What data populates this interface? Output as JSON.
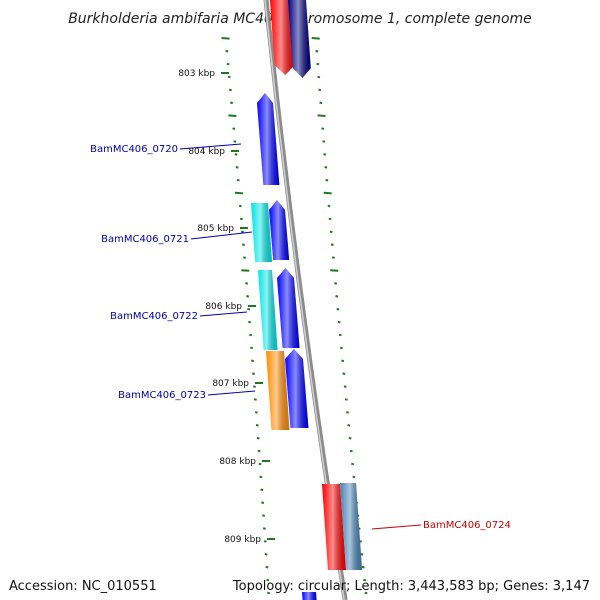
{
  "title": "Burkholderia ambifaria MC40-6 chromosome 1, complete genome",
  "footer": {
    "accession": "Accession: NC_010551",
    "topology": "Topology: circular; Length: 3,443,583 bp; Genes: 3,147"
  },
  "colors": {
    "backbone": "#8c8c8c",
    "tick_dash": "#1f7a1f",
    "label_forward": "#0000b0",
    "label_reverse": "#cc0000"
  },
  "ticks": [
    {
      "label": "803 kbp"
    },
    {
      "label": "804 kbp"
    },
    {
      "label": "805 kbp"
    },
    {
      "label": "806 kbp"
    },
    {
      "label": "807 kbp"
    },
    {
      "label": "808 kbp"
    },
    {
      "label": "809 kbp"
    }
  ],
  "gene_labels": [
    {
      "text": "BamMC406_0720",
      "strand": "forward"
    },
    {
      "text": "BamMC406_0721",
      "strand": "forward"
    },
    {
      "text": "BamMC406_0722",
      "strand": "forward"
    },
    {
      "text": "BamMC406_0723",
      "strand": "forward"
    },
    {
      "text": "BamMC406_0724",
      "strand": "reverse"
    }
  ],
  "features": [
    {
      "track": "cog",
      "color": "#ff0000"
    },
    {
      "track": "cds",
      "color": "#000080"
    },
    {
      "track": "cds",
      "color": "#0000ff"
    },
    {
      "track": "cog",
      "color": "#00e5e5"
    },
    {
      "track": "cds",
      "color": "#0000ff"
    },
    {
      "track": "cog",
      "color": "#00e5e5"
    },
    {
      "track": "cds",
      "color": "#0000ff"
    },
    {
      "track": "cog",
      "color": "#ff8c00"
    },
    {
      "track": "cds",
      "color": "#0000ff"
    },
    {
      "track": "cog",
      "color": "#ff0000"
    },
    {
      "track": "cds",
      "color": "#4682b4"
    },
    {
      "track": "cds",
      "color": "#0000ff"
    }
  ]
}
